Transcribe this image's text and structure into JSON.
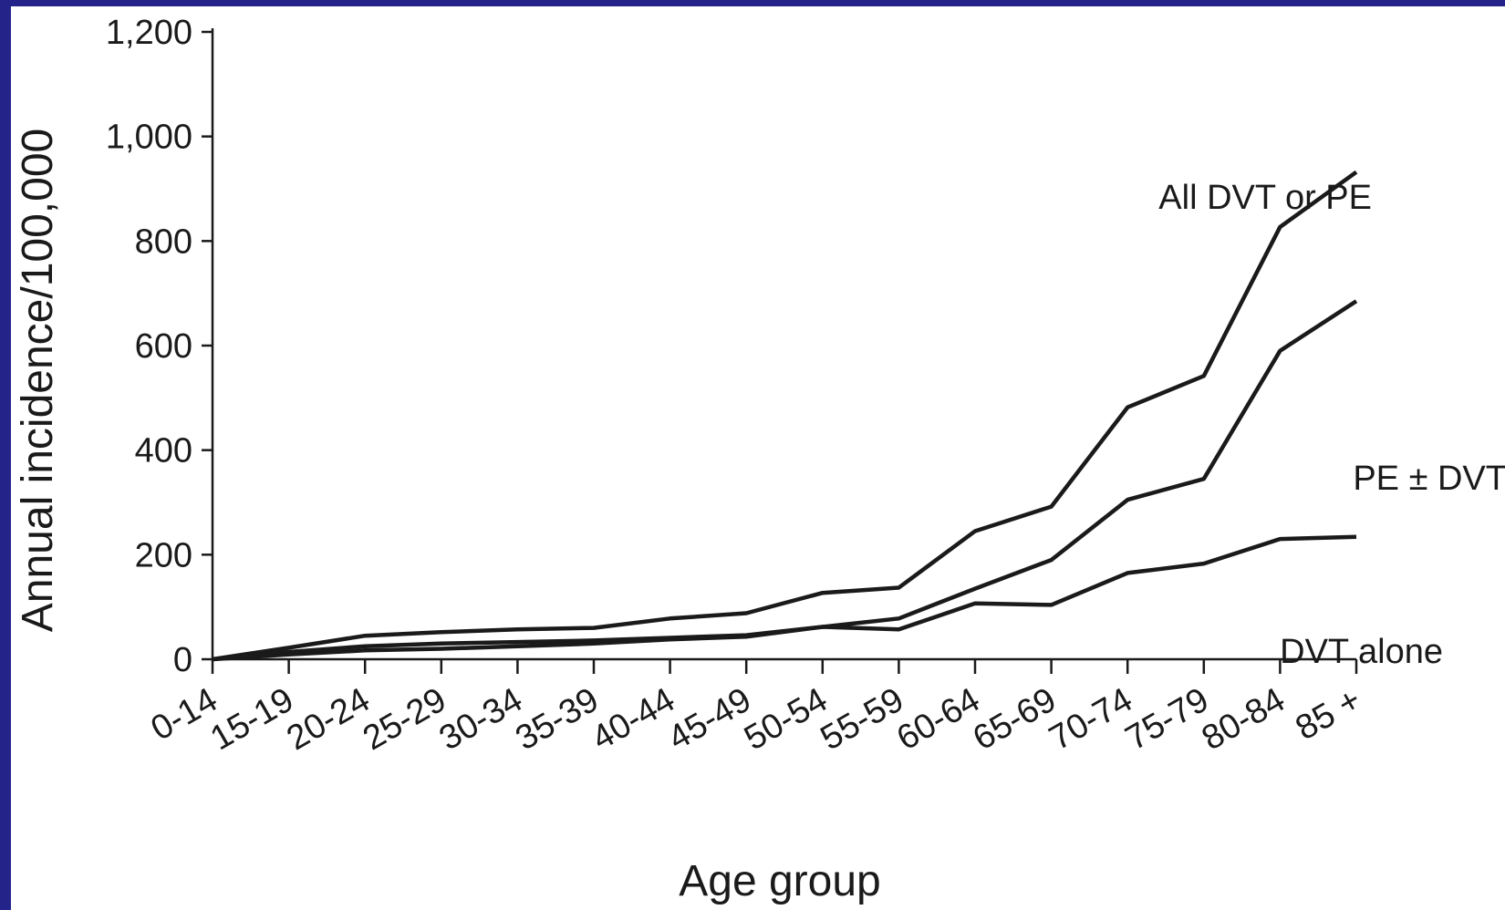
{
  "chart_data": {
    "type": "line",
    "title": "",
    "xlabel": "Age group",
    "ylabel": "Annual incidence/100,000",
    "categories": [
      "0-14",
      "15-19",
      "20-24",
      "25-29",
      "30-34",
      "35-39",
      "40-44",
      "45-49",
      "50-54",
      "55-59",
      "60-64",
      "65-69",
      "70-74",
      "75-79",
      "80-84",
      "85 +"
    ],
    "ylim": [
      0,
      1200
    ],
    "yticks": [
      0,
      200,
      400,
      600,
      800,
      1000,
      1200
    ],
    "ytick_labels": [
      "0",
      "200",
      "400",
      "600",
      "800",
      "1,000",
      "1,200"
    ],
    "grid": false,
    "legend": "inline labels next to lines",
    "series": [
      {
        "name": "All DVT or PE",
        "values": [
          0,
          22,
          45,
          52,
          57,
          60,
          78,
          88,
          127,
          137,
          245,
          292,
          482,
          542,
          827,
          932
        ]
      },
      {
        "name": "PE ± DVT",
        "values": [
          0,
          14,
          25,
          30,
          33,
          36,
          41,
          46,
          62,
          78,
          135,
          190,
          305,
          345,
          590,
          685
        ]
      },
      {
        "name": "DVT alone",
        "values": [
          0,
          9,
          17,
          20,
          25,
          30,
          38,
          43,
          62,
          57,
          107,
          104,
          165,
          183,
          230,
          234
        ]
      }
    ],
    "line_color": "#1a1a1a"
  },
  "background_color": "#23238a"
}
